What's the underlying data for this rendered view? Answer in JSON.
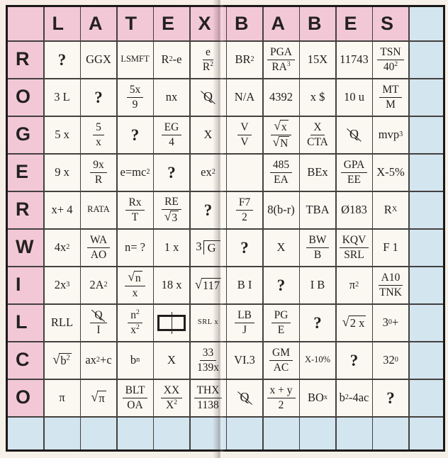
{
  "puzzle": {
    "col_headers": [
      "L",
      "A",
      "T",
      "E",
      "X",
      "B",
      "A",
      "B",
      "E",
      "S"
    ],
    "row_headers": [
      "R",
      "O",
      "G",
      "E",
      "R",
      "W",
      "I",
      "L",
      "C",
      "O"
    ],
    "colors": {
      "header_pink": "#f2c8d7",
      "spacer_blue": "#d3e5ef",
      "cell_bg": "#fbf8f1",
      "grid_line": "#43403e",
      "outer_border": "#1b1918",
      "ink": "#201d1c"
    },
    "question_mark": "?",
    "cells": [
      [
        {
          "t": "q"
        },
        {
          "t": "txt",
          "v": "GGX"
        },
        {
          "t": "txt",
          "v": "LSMFT",
          "s": "sm"
        },
        {
          "t": "txt",
          "v": "R^{2}-e"
        },
        {
          "t": "frac",
          "n": "e",
          "d": "R^{2}"
        },
        {
          "t": "txt",
          "v": "BR^{2}"
        },
        {
          "t": "frac",
          "n": "PGA",
          "d": "RA^{3}"
        },
        {
          "t": "txt",
          "v": "15X"
        },
        {
          "t": "txt",
          "v": "11743"
        },
        {
          "t": "frac",
          "n": "TSN",
          "d": "40^{2}"
        }
      ],
      [
        {
          "t": "txt",
          "v": "3 L"
        },
        {
          "t": "q"
        },
        {
          "t": "frac",
          "n": "5x",
          "d": "9"
        },
        {
          "t": "txt",
          "v": "nx"
        },
        {
          "t": "slq",
          "v": "Q"
        },
        {
          "t": "txt",
          "v": "N/A"
        },
        {
          "t": "txt",
          "v": "4392"
        },
        {
          "t": "txt",
          "v": "x $"
        },
        {
          "t": "txt",
          "v": "10 u"
        },
        {
          "t": "frac",
          "n": "MT",
          "d": "M"
        }
      ],
      [
        {
          "t": "txt",
          "v": "5 x"
        },
        {
          "t": "frac",
          "n": "5",
          "d": "x"
        },
        {
          "t": "q"
        },
        {
          "t": "frac",
          "n": "EG",
          "d": "4"
        },
        {
          "t": "txt",
          "v": "X"
        },
        {
          "t": "frac",
          "n": "V",
          "d": "V"
        },
        {
          "t": "frac",
          "n": "~{x}",
          "d": "~{N}"
        },
        {
          "t": "frac",
          "n": "X",
          "d": "CTA"
        },
        {
          "t": "slq",
          "v": "Q"
        },
        {
          "t": "txt",
          "v": "mvp^{3}"
        }
      ],
      [
        {
          "t": "txt",
          "v": "9 x"
        },
        {
          "t": "frac",
          "n": "9x",
          "d": "R"
        },
        {
          "t": "txt",
          "v": "e=mc_{2}"
        },
        {
          "t": "q"
        },
        {
          "t": "txt",
          "v": "ex^{2}"
        },
        {
          "t": "blank"
        },
        {
          "t": "frac",
          "n": "485",
          "d": "EA"
        },
        {
          "t": "txt",
          "v": "BEx"
        },
        {
          "t": "frac",
          "n": "GPA",
          "d": "EE"
        },
        {
          "t": "txt",
          "v": "X-5%"
        }
      ],
      [
        {
          "t": "txt",
          "v": "x+ 4"
        },
        {
          "t": "txt",
          "v": "RATA",
          "s": "sm"
        },
        {
          "t": "frac",
          "n": "Rx",
          "d": "T"
        },
        {
          "t": "frac",
          "n": "RE",
          "d": "~{3}"
        },
        {
          "t": "q"
        },
        {
          "t": "frac",
          "n": "F7",
          "d": "2"
        },
        {
          "t": "txt",
          "v": "8(b-r)"
        },
        {
          "t": "txt",
          "v": "TBA"
        },
        {
          "t": "txt",
          "v": "Ø183"
        },
        {
          "t": "txt",
          "v": "R_{X}"
        }
      ],
      [
        {
          "t": "txt",
          "v": "4x^{2}"
        },
        {
          "t": "frac",
          "n": "WA",
          "d": "AO"
        },
        {
          "t": "txt",
          "v": "n= ?"
        },
        {
          "t": "txt",
          "v": "1 x"
        },
        {
          "t": "ldiv",
          "a": "3",
          "b": "G"
        },
        {
          "t": "q"
        },
        {
          "t": "txt",
          "v": "X"
        },
        {
          "t": "frac",
          "n": "BW",
          "d": "B"
        },
        {
          "t": "frac",
          "n": "KQV",
          "d": "SRL"
        },
        {
          "t": "txt",
          "v": "F 1"
        }
      ],
      [
        {
          "t": "txt",
          "v": "2x^{3}"
        },
        {
          "t": "txt",
          "v": "2A^{2}"
        },
        {
          "t": "frac",
          "n": "~{n}",
          "d": "x"
        },
        {
          "t": "txt",
          "v": "18 x"
        },
        {
          "t": "txt",
          "v": "~{117}"
        },
        {
          "t": "txt",
          "v": "B I"
        },
        {
          "t": "q"
        },
        {
          "t": "txt",
          "v": "I B"
        },
        {
          "t": "txt",
          "v": "π^{2}"
        },
        {
          "t": "frac",
          "n": "A10",
          "d": "TNK"
        }
      ],
      [
        {
          "t": "txt",
          "v": "RLL"
        },
        {
          "t": "frac",
          "n": "%{Q}",
          "d": "I"
        },
        {
          "t": "frac",
          "n": "n^{2}",
          "d": "x^{2}"
        },
        {
          "t": "rect"
        },
        {
          "t": "txt",
          "v": "SRL x",
          "s": "xs"
        },
        {
          "t": "frac",
          "n": "LB",
          "d": "J"
        },
        {
          "t": "frac",
          "n": "PG",
          "d": "E"
        },
        {
          "t": "q"
        },
        {
          "t": "txt",
          "v": "~{2 x}"
        },
        {
          "t": "txt",
          "v": "3^{0}+"
        }
      ],
      [
        {
          "t": "txt",
          "v": "~{b^{2}}"
        },
        {
          "t": "txt",
          "v": "ax^{2}+c"
        },
        {
          "t": "txt",
          "v": "b^{n}"
        },
        {
          "t": "txt",
          "v": "X"
        },
        {
          "t": "frac",
          "n": "33",
          "d": "139x"
        },
        {
          "t": "txt",
          "v": "VI.3"
        },
        {
          "t": "frac",
          "n": "GM",
          "d": "AC"
        },
        {
          "t": "txt",
          "v": "X-10%",
          "s": "sm"
        },
        {
          "t": "q"
        },
        {
          "t": "txt",
          "v": "32^{0}"
        }
      ],
      [
        {
          "t": "txt",
          "v": "π"
        },
        {
          "t": "txt",
          "v": "~{π}"
        },
        {
          "t": "frac",
          "n": "BLT",
          "d": "OA"
        },
        {
          "t": "frac",
          "n": "XX",
          "d": "X^{2}"
        },
        {
          "t": "frac",
          "n": "THX",
          "d": "1138"
        },
        {
          "t": "slq",
          "v": "Q"
        },
        {
          "t": "frac",
          "n": "x + y",
          "d": "2"
        },
        {
          "t": "txt",
          "v": "BO^{x}"
        },
        {
          "t": "txt",
          "v": "b^{2}-4ac"
        },
        {
          "t": "q"
        }
      ]
    ]
  }
}
